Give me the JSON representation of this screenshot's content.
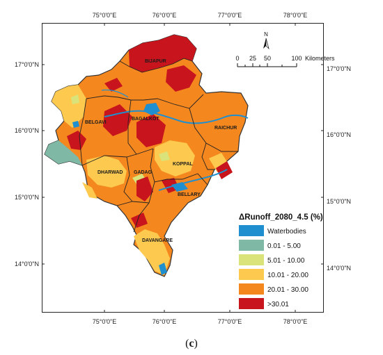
{
  "map": {
    "ticks_top": [
      "75°0'0\"E",
      "76°0'0\"E",
      "77°0'0\"E",
      "78°0'0\"E"
    ],
    "ticks_bottom": [
      "75°0'0\"E",
      "76°0'0\"E",
      "77°0'0\"E",
      "78°0'0\"E"
    ],
    "ticks_left": [
      "17°0'0\"N",
      "16°0'0\"N",
      "15°0'0\"N",
      "14°0'0\"N"
    ],
    "ticks_right": [
      "17°0'0\"N",
      "16°0'0\"N",
      "15°0'0\"N",
      "14°0'0\"N"
    ],
    "districts": {
      "bijapur": "BIJAPUR",
      "belgavi": "BELGAVI",
      "bagalkot": "BAGALKOT",
      "raichur": "RAICHUR",
      "koppal": "KOPPAL",
      "dharwad": "DHARWAD",
      "gadag": "GADAG",
      "bellary": "BELLARY",
      "davangare": "DAVANGARE"
    },
    "north_label": "N",
    "scale": {
      "labels": [
        "0",
        "25",
        "50",
        "100"
      ],
      "unit": "Kilometers"
    }
  },
  "legend": {
    "title": "ΔRunoff_2080_4.5 (%)",
    "items": [
      {
        "label": "Waterbodies",
        "color": "#1f8fcf"
      },
      {
        "label": "0.01 - 5.00",
        "color": "#7fb8a4"
      },
      {
        "label": "5.01 - 10.00",
        "color": "#d9e37a"
      },
      {
        "label": "10.01 - 20.00",
        "color": "#fdca4f"
      },
      {
        "label": "20.01 - 30.00",
        "color": "#f5871f"
      },
      {
        "label": ">30.01",
        "color": "#c8141c"
      }
    ]
  },
  "caption": {
    "open": "(",
    "letter": "c",
    "close": ")"
  }
}
